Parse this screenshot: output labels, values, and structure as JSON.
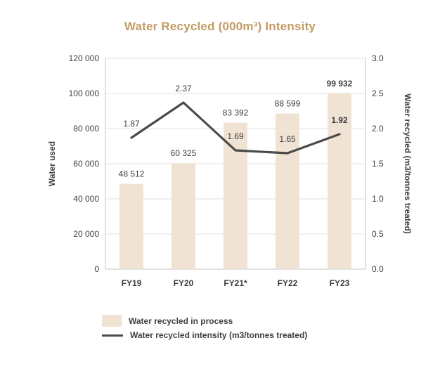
{
  "chart_data": {
    "type": "bar",
    "subtype": "bar-and-line-combo",
    "title": "Water Recycled (000m³) Intensity",
    "categories": [
      "FY19",
      "FY20",
      "FY21*",
      "FY22",
      "FY23"
    ],
    "series": [
      {
        "name": "Water recycled in process",
        "type": "bar",
        "axis": "left",
        "values": [
          48512,
          60325,
          83392,
          88599,
          99932
        ],
        "labels": [
          "48 512",
          "60 325",
          "83 392",
          "88 599",
          "99 932"
        ],
        "color": "#F0E3D3"
      },
      {
        "name": "Water recycled intensity (m3/tonnes treated)",
        "type": "line",
        "axis": "right",
        "values": [
          1.87,
          2.37,
          1.69,
          1.65,
          1.92
        ],
        "labels": [
          "1.87",
          "2.37",
          "1.69",
          "1.65",
          "1.92"
        ],
        "color": "#4A4A4A"
      }
    ],
    "left_axis": {
      "label": "Water used",
      "min": 0,
      "max": 120000,
      "step": 20000,
      "ticks": [
        "0",
        "20 000",
        "40 000",
        "60 000",
        "80 000",
        "100 000",
        "120 000"
      ]
    },
    "right_axis": {
      "label": "Water recycled (m3/tonnes treated)",
      "min": 0,
      "max": 3.0,
      "step": 0.5,
      "ticks": [
        "0.0",
        "0.5",
        "1.0",
        "1.5",
        "2.0",
        "2.5",
        "3.0"
      ]
    },
    "grid": true,
    "legend_position": "bottom",
    "emphasized_index": 4
  },
  "colors": {
    "title": "#C49A63",
    "bar": "#F0E3D3",
    "line": "#4A4A4A",
    "text": "#3F3F3F",
    "grid": "#E2E2E2",
    "axis": "#C6C6C6"
  }
}
